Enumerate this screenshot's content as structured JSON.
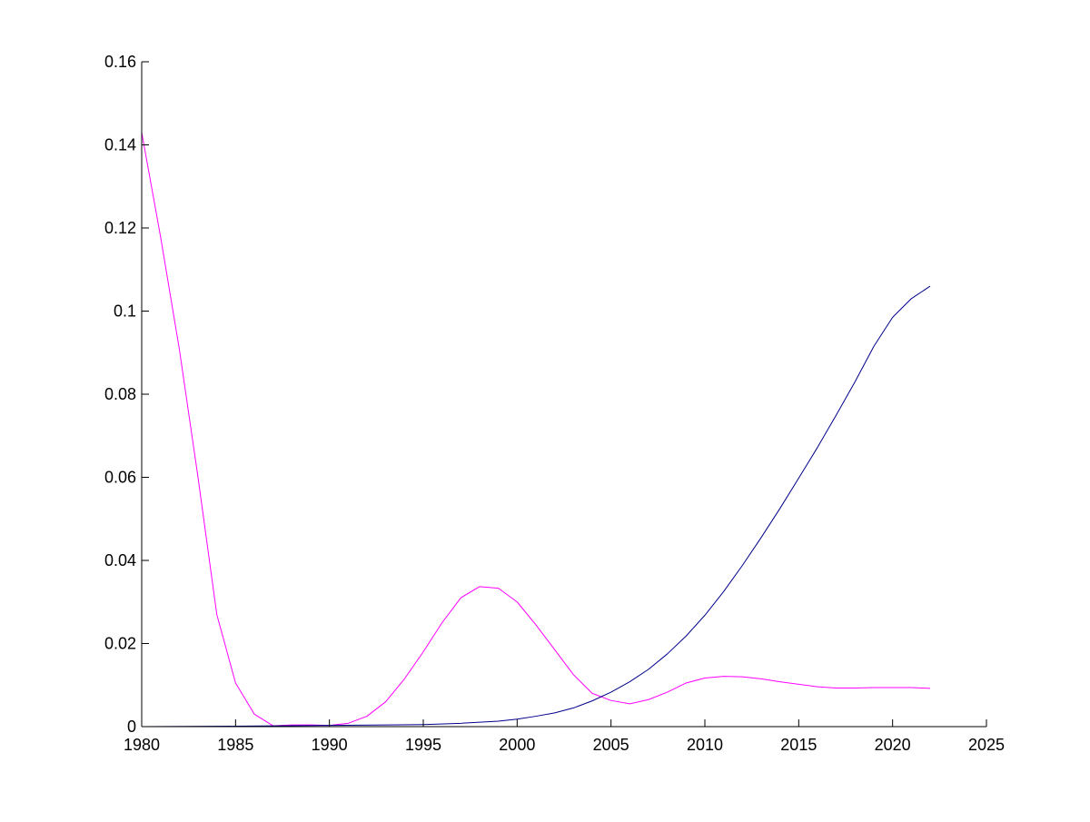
{
  "chart_data": {
    "type": "line",
    "title": "",
    "xlabel": "",
    "ylabel": "",
    "xlim": [
      1980,
      2025
    ],
    "ylim": [
      0,
      0.16
    ],
    "grid": false,
    "x_ticks": [
      {
        "value": 1980,
        "label": "1980"
      },
      {
        "value": 1985,
        "label": "1985"
      },
      {
        "value": 1990,
        "label": "1990"
      },
      {
        "value": 1995,
        "label": "1995"
      },
      {
        "value": 2000,
        "label": "2000"
      },
      {
        "value": 2005,
        "label": "2005"
      },
      {
        "value": 2010,
        "label": "2010"
      },
      {
        "value": 2015,
        "label": "2015"
      },
      {
        "value": 2020,
        "label": "2020"
      },
      {
        "value": 2025,
        "label": "2025"
      }
    ],
    "y_ticks": [
      {
        "value": 0,
        "label": "0"
      },
      {
        "value": 0.02,
        "label": "0.02"
      },
      {
        "value": 0.04,
        "label": "0.04"
      },
      {
        "value": 0.06,
        "label": "0.06"
      },
      {
        "value": 0.08,
        "label": "0.08"
      },
      {
        "value": 0.1,
        "label": "0.1"
      },
      {
        "value": 0.12,
        "label": "0.12"
      },
      {
        "value": 0.14,
        "label": "0.14"
      },
      {
        "value": 0.16,
        "label": "0.16"
      }
    ],
    "series": [
      {
        "color": "#ff00ff",
        "points": [
          [
            1980,
            0.143
          ],
          [
            1981,
            0.118
          ],
          [
            1982,
            0.091
          ],
          [
            1983,
            0.06
          ],
          [
            1984,
            0.027
          ],
          [
            1985,
            0.0105
          ],
          [
            1986,
            0.003
          ],
          [
            1987,
            0.0002
          ],
          [
            1988,
            0.0004
          ],
          [
            1989,
            0.0004
          ],
          [
            1990,
            0.0003
          ],
          [
            1991,
            0.0008
          ],
          [
            1992,
            0.0025
          ],
          [
            1993,
            0.006
          ],
          [
            1994,
            0.0115
          ],
          [
            1995,
            0.018
          ],
          [
            1996,
            0.025
          ],
          [
            1997,
            0.031
          ],
          [
            1998,
            0.0337
          ],
          [
            1999,
            0.0333
          ],
          [
            2000,
            0.03
          ],
          [
            2001,
            0.0245
          ],
          [
            2002,
            0.0185
          ],
          [
            2003,
            0.0125
          ],
          [
            2004,
            0.008
          ],
          [
            2005,
            0.0063
          ],
          [
            2006,
            0.0055
          ],
          [
            2007,
            0.0065
          ],
          [
            2008,
            0.0083
          ],
          [
            2009,
            0.0105
          ],
          [
            2010,
            0.0117
          ],
          [
            2011,
            0.0121
          ],
          [
            2012,
            0.012
          ],
          [
            2013,
            0.0115
          ],
          [
            2014,
            0.0108
          ],
          [
            2015,
            0.0102
          ],
          [
            2016,
            0.0096
          ],
          [
            2017,
            0.0093
          ],
          [
            2018,
            0.0093
          ],
          [
            2019,
            0.0094
          ],
          [
            2020,
            0.0094
          ],
          [
            2021,
            0.0094
          ],
          [
            2022,
            0.0092
          ]
        ]
      },
      {
        "color": "#00008b",
        "points": [
          [
            1980,
            0.0
          ],
          [
            1985,
            0.0001
          ],
          [
            1990,
            0.0003
          ],
          [
            1993,
            0.0004
          ],
          [
            1995,
            0.0005
          ],
          [
            1997,
            0.0008
          ],
          [
            1999,
            0.0013
          ],
          [
            2000,
            0.0018
          ],
          [
            2001,
            0.0025
          ],
          [
            2002,
            0.0033
          ],
          [
            2003,
            0.0045
          ],
          [
            2004,
            0.0062
          ],
          [
            2005,
            0.0083
          ],
          [
            2006,
            0.0108
          ],
          [
            2007,
            0.0138
          ],
          [
            2008,
            0.0175
          ],
          [
            2009,
            0.0218
          ],
          [
            2010,
            0.0268
          ],
          [
            2011,
            0.0325
          ],
          [
            2012,
            0.0388
          ],
          [
            2013,
            0.0455
          ],
          [
            2014,
            0.0525
          ],
          [
            2015,
            0.0598
          ],
          [
            2016,
            0.0672
          ],
          [
            2017,
            0.075
          ],
          [
            2018,
            0.083
          ],
          [
            2019,
            0.0915
          ],
          [
            2020,
            0.0985
          ],
          [
            2021,
            0.103
          ],
          [
            2022,
            0.106
          ]
        ]
      }
    ]
  }
}
